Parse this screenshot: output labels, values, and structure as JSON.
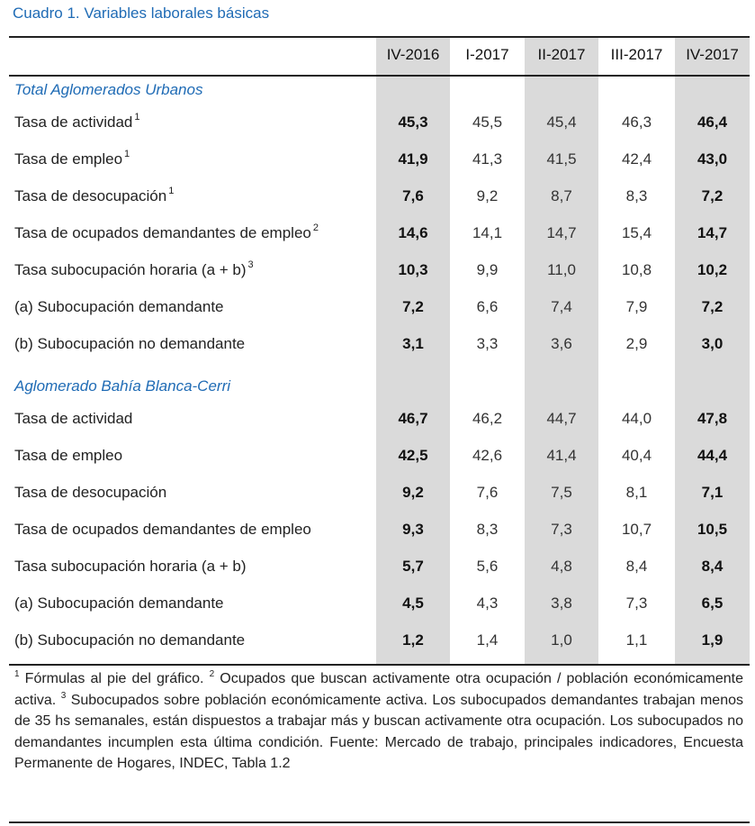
{
  "title": "Cuadro 1. Variables laborales básicas",
  "columns": [
    "IV-2016",
    "I-2017",
    "II-2017",
    "III-2017",
    "IV-2017"
  ],
  "sections": [
    {
      "name": "Total Aglomerados Urbanos",
      "rows": [
        {
          "label": "Tasa de actividad",
          "sup": "1",
          "values": [
            "45,3",
            "45,5",
            "45,4",
            "46,3",
            "46,4"
          ]
        },
        {
          "label": "Tasa de empleo",
          "sup": "1",
          "values": [
            "41,9",
            "41,3",
            "41,5",
            "42,4",
            "43,0"
          ]
        },
        {
          "label": "Tasa de desocupación",
          "sup": "1",
          "values": [
            "7,6",
            "9,2",
            "8,7",
            "8,3",
            "7,2"
          ]
        },
        {
          "label": "Tasa de ocupados demandantes de empleo",
          "sup": "2",
          "values": [
            "14,6",
            "14,1",
            "14,7",
            "15,4",
            "14,7"
          ]
        },
        {
          "label": "Tasa subocupación horaria (a + b)",
          "sup": "3",
          "values": [
            "10,3",
            "9,9",
            "11,0",
            "10,8",
            "10,2"
          ]
        },
        {
          "label": "(a) Subocupación demandante",
          "sup": "",
          "values": [
            "7,2",
            "6,6",
            "7,4",
            "7,9",
            "7,2"
          ]
        },
        {
          "label": "(b) Subocupación no demandante",
          "sup": "",
          "values": [
            "3,1",
            "3,3",
            "3,6",
            "2,9",
            "3,0"
          ]
        }
      ]
    },
    {
      "name": "Aglomerado Bahía Blanca-Cerri",
      "rows": [
        {
          "label": "Tasa de actividad",
          "sup": "",
          "values": [
            "46,7",
            "46,2",
            "44,7",
            "44,0",
            "47,8"
          ]
        },
        {
          "label": "Tasa de empleo",
          "sup": "",
          "values": [
            "42,5",
            "42,6",
            "41,4",
            "40,4",
            "44,4"
          ]
        },
        {
          "label": "Tasa de desocupación",
          "sup": "",
          "values": [
            "9,2",
            "7,6",
            "7,5",
            "8,1",
            "7,1"
          ]
        },
        {
          "label": "Tasa de ocupados demandantes de empleo",
          "sup": "",
          "values": [
            "9,3",
            "8,3",
            "7,3",
            "10,7",
            "10,5"
          ]
        },
        {
          "label": "Tasa subocupación horaria (a + b)",
          "sup": "",
          "values": [
            "5,7",
            "5,6",
            "4,8",
            "8,4",
            "8,4"
          ]
        },
        {
          "label": "(a) Subocupación demandante",
          "sup": "",
          "values": [
            "4,5",
            "4,3",
            "3,8",
            "7,3",
            "6,5"
          ]
        },
        {
          "label": "(b) Subocupación no demandante",
          "sup": "",
          "values": [
            "1,2",
            "1,4",
            "1,0",
            "1,1",
            "1,9"
          ]
        }
      ]
    }
  ],
  "notes": [
    {
      "sup": "1",
      "text": " Fórmulas al pie del gráfico. "
    },
    {
      "sup": "2",
      "text": " Ocupados que buscan activamente otra ocupación / población económicamente activa. "
    },
    {
      "sup": "3",
      "text": " Subocupados sobre población económicamente activa. Los subocupados demandantes trabajan menos de 35 hs semanales, están dispuestos a trabajar más y buscan activamente otra ocupación. Los subocupados no demandantes incumplen esta última condición. Fuente: Mercado de trabajo, principales indicadores, Encuesta Permanente de Hogares, INDEC, Tabla 1.2"
    }
  ],
  "colors": {
    "accent": "#1f6bb5",
    "shade": "#dadada"
  }
}
